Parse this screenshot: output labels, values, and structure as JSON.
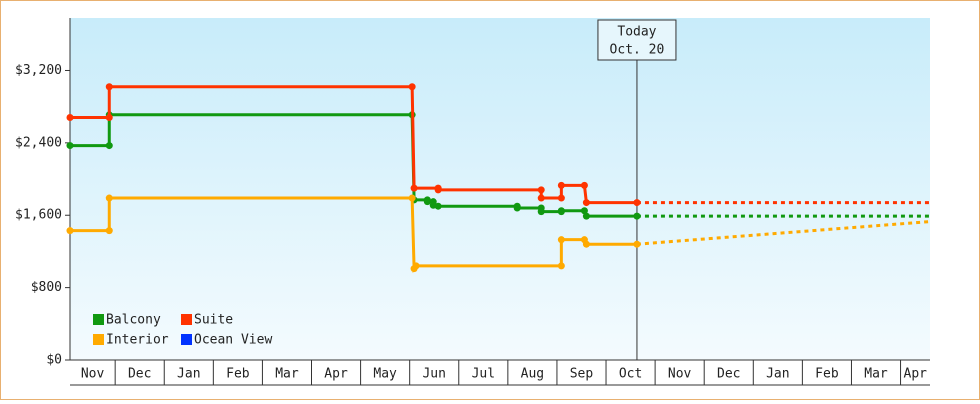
{
  "chart_data": {
    "type": "line",
    "xlim": [
      0.08,
      17.6
    ],
    "ylim": [
      0,
      3780
    ],
    "xticks": [
      {
        "value": 0,
        "label": "Nov"
      },
      {
        "value": 1,
        "label": "Dec"
      },
      {
        "value": 2,
        "label": "Jan"
      },
      {
        "value": 3,
        "label": "Feb"
      },
      {
        "value": 4,
        "label": "Mar"
      },
      {
        "value": 5,
        "label": "Apr"
      },
      {
        "value": 6,
        "label": "May"
      },
      {
        "value": 7,
        "label": "Jun"
      },
      {
        "value": 8,
        "label": "Jul"
      },
      {
        "value": 9,
        "label": "Aug"
      },
      {
        "value": 10,
        "label": "Sep"
      },
      {
        "value": 11,
        "label": "Oct"
      },
      {
        "value": 12,
        "label": "Nov"
      },
      {
        "value": 13,
        "label": "Dec"
      },
      {
        "value": 14,
        "label": "Jan"
      },
      {
        "value": 15,
        "label": "Feb"
      },
      {
        "value": 16,
        "label": "Mar"
      },
      {
        "value": 17,
        "label": "Apr"
      }
    ],
    "yticks": [
      {
        "value": 0,
        "label": "$0"
      },
      {
        "value": 800,
        "label": "$800"
      },
      {
        "value": 1600,
        "label": "$1,600"
      },
      {
        "value": 2400,
        "label": "$2,400"
      },
      {
        "value": 3200,
        "label": "$3,200"
      }
    ],
    "annotation": {
      "x": 11.63,
      "lines": [
        "Today",
        "Oct. 20"
      ]
    },
    "series": [
      {
        "name": "Balcony",
        "color": "#119911",
        "x": [
          0.08,
          0.88,
          0.88,
          7.05,
          7.09,
          7.36,
          7.36,
          7.48,
          7.48,
          7.58,
          9.19,
          9.19,
          9.68,
          9.68,
          10.09,
          10.09,
          10.56,
          10.6,
          11.63
        ],
        "values": [
          2370,
          2370,
          2710,
          2710,
          1770,
          1770,
          1750,
          1750,
          1710,
          1700,
          1700,
          1680,
          1680,
          1640,
          1640,
          1650,
          1650,
          1590,
          1590
        ],
        "projection": {
          "x": [
            11.63,
            17.6
          ],
          "values": [
            1590,
            1590
          ]
        }
      },
      {
        "name": "Suite",
        "color": "#ff3300",
        "x": [
          0.08,
          0.88,
          0.88,
          7.05,
          7.09,
          7.58,
          7.58,
          9.68,
          9.68,
          10.09,
          10.09,
          10.56,
          10.6,
          11.63
        ],
        "values": [
          2680,
          2680,
          3020,
          3020,
          1900,
          1900,
          1880,
          1880,
          1790,
          1790,
          1930,
          1930,
          1740,
          1740
        ],
        "projection": {
          "x": [
            11.63,
            17.6
          ],
          "values": [
            1740,
            1740
          ]
        }
      },
      {
        "name": "Interior",
        "color": "#ffaa00",
        "x": [
          0.08,
          0.88,
          0.88,
          7.05,
          7.09,
          7.13,
          10.09,
          10.09,
          10.56,
          10.6,
          11.63
        ],
        "values": [
          1430,
          1430,
          1790,
          1790,
          1010,
          1040,
          1040,
          1330,
          1330,
          1280,
          1280
        ],
        "projection": {
          "x": [
            11.63,
            17.6
          ],
          "values": [
            1280,
            1530
          ]
        }
      },
      {
        "name": "Ocean View",
        "color": "#0033ff",
        "x": [],
        "values": []
      }
    ]
  }
}
